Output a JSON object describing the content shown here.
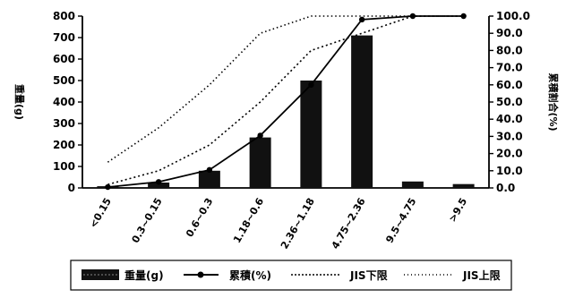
{
  "chart_data": {
    "type": "bar",
    "categories": [
      "<0.15",
      "0.3~0.15",
      "0.6~0.3",
      "1.18~0.6",
      "2.36~1.18",
      "4.75~2.36",
      "9.5~4.75",
      ">9.5"
    ],
    "series": [
      {
        "name": "重量(g)",
        "type": "bar",
        "axis": "left",
        "values": [
          8,
          25,
          80,
          235,
          500,
          710,
          30,
          18
        ]
      },
      {
        "name": "累積(%)",
        "type": "line",
        "axis": "right",
        "marker": "dot",
        "values": [
          0.5,
          3.5,
          10.5,
          30.5,
          60.0,
          98.0,
          100.0,
          100.0
        ]
      },
      {
        "name": "JIS下限",
        "type": "line",
        "axis": "right",
        "style": "dotted",
        "values": [
          2,
          10,
          25,
          50,
          80,
          90,
          100,
          100
        ]
      },
      {
        "name": "JIS上限",
        "type": "line",
        "axis": "right",
        "style": "dotted",
        "values": [
          15,
          35,
          60,
          90,
          100,
          100,
          100,
          100
        ]
      }
    ],
    "y_left": {
      "label": "重量(g)",
      "ylim": [
        0,
        800
      ],
      "ticks": [
        "0",
        "100",
        "200",
        "300",
        "400",
        "500",
        "600",
        "700",
        "800"
      ]
    },
    "y_right": {
      "label": "累積割合(%)",
      "ylim": [
        0,
        100
      ],
      "ticks": [
        "0.0",
        "10.0",
        "20.0",
        "30.0",
        "40.0",
        "50.0",
        "60.0",
        "70.0",
        "80.0",
        "90.0",
        "100.0"
      ]
    },
    "legend": {
      "placement": "bottom",
      "items": [
        "重量(g)",
        "累積(%)",
        "JIS下限",
        "JIS上限"
      ]
    },
    "grid": false,
    "colors": {
      "bar": "#111111",
      "line": "#000000",
      "background": "#ffffff"
    }
  }
}
